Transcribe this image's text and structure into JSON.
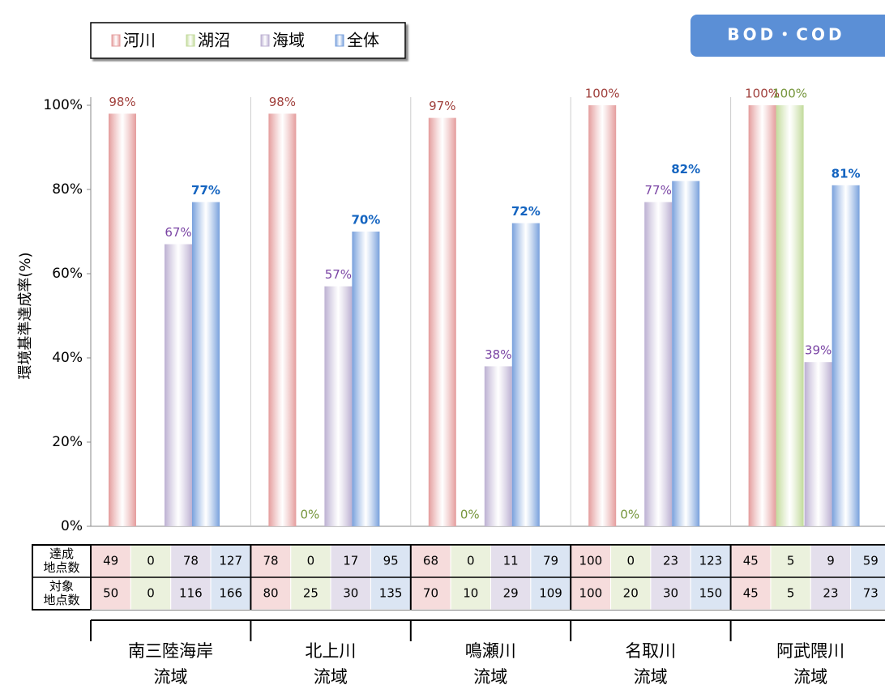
{
  "chart_data": {
    "type": "bar",
    "badge": "BOD・COD",
    "y_label": "環境基準達成率(%)",
    "categories": [
      "南三陸海岸\n流域",
      "北上川\n流域",
      "鳴瀬川\n流域",
      "名取川\n流域",
      "阿武隈川\n流域"
    ],
    "series": [
      {
        "name": "河川",
        "color": "#e49c9c",
        "label_color": "#a0403c",
        "values": [
          98,
          98,
          97,
          100,
          100
        ],
        "value_labels": [
          "98%",
          "98%",
          "97%",
          "100%",
          "100%"
        ]
      },
      {
        "name": "湖沼",
        "color": "#c2da9a",
        "label_color": "#76963c",
        "values": [
          null,
          0,
          0,
          0,
          100
        ],
        "value_labels": [
          null,
          "0%",
          "0%",
          "0%",
          "100%"
        ]
      },
      {
        "name": "海域",
        "color": "#bcb0d2",
        "label_color": "#7a44a4",
        "values": [
          67,
          57,
          38,
          77,
          39
        ],
        "value_labels": [
          "67%",
          "57%",
          "38%",
          "77%",
          "39%"
        ]
      },
      {
        "name": "全体",
        "color": "#78a0dc",
        "label_color": "#1464c0",
        "values": [
          77,
          70,
          72,
          82,
          81
        ],
        "value_labels": [
          "77%",
          "70%",
          "72%",
          "82%",
          "81%"
        ]
      }
    ],
    "ylim": [
      0,
      100
    ],
    "yticks": [
      {
        "value": 0,
        "label": "0%"
      },
      {
        "value": 20,
        "label": "20%"
      },
      {
        "value": 40,
        "label": "40%"
      },
      {
        "value": 60,
        "label": "60%"
      },
      {
        "value": 80,
        "label": "80%"
      },
      {
        "value": 100,
        "label": "100%"
      }
    ],
    "table": {
      "row_labels": [
        "達成\n地点数",
        "対象\n地点数"
      ],
      "rows": [
        [
          49,
          0,
          78,
          127,
          78,
          0,
          17,
          95,
          68,
          0,
          11,
          79,
          100,
          0,
          23,
          123,
          45,
          5,
          9,
          59
        ],
        [
          50,
          0,
          116,
          166,
          80,
          25,
          30,
          135,
          70,
          10,
          29,
          109,
          100,
          20,
          30,
          150,
          45,
          5,
          23,
          73
        ]
      ]
    }
  }
}
